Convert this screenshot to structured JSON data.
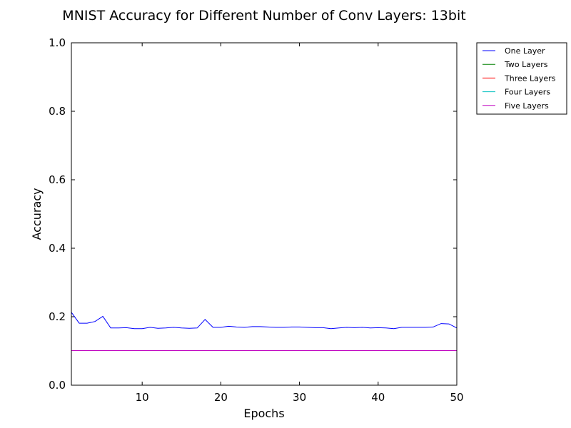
{
  "chart_data": {
    "type": "line",
    "title": "MNIST Accuracy for Different Number of Conv Layers: 13bit",
    "xlabel": "Epochs",
    "ylabel": "Accuracy",
    "xlim": [
      1,
      50
    ],
    "ylim": [
      0.0,
      1.0
    ],
    "xticks": [
      10,
      20,
      30,
      40,
      50
    ],
    "xtick_labels": [
      "10",
      "20",
      "30",
      "40",
      "50"
    ],
    "yticks": [
      0.0,
      0.2,
      0.4,
      0.6,
      0.8,
      1.0
    ],
    "ytick_labels": [
      "0.0",
      "0.2",
      "0.4",
      "0.6",
      "0.8",
      "1.0"
    ],
    "grid": false,
    "legend_position": "outside top-right",
    "x": [
      1,
      2,
      3,
      4,
      5,
      6,
      7,
      8,
      9,
      10,
      11,
      12,
      13,
      14,
      15,
      16,
      17,
      18,
      19,
      20,
      21,
      22,
      23,
      24,
      25,
      26,
      27,
      28,
      29,
      30,
      31,
      32,
      33,
      34,
      35,
      36,
      37,
      38,
      39,
      40,
      41,
      42,
      43,
      44,
      45,
      46,
      47,
      48,
      49,
      50
    ],
    "series": [
      {
        "name": "One Layer",
        "color": "#0000ff",
        "values": [
          0.213,
          0.181,
          0.181,
          0.186,
          0.201,
          0.167,
          0.167,
          0.168,
          0.165,
          0.165,
          0.169,
          0.166,
          0.167,
          0.169,
          0.167,
          0.166,
          0.167,
          0.192,
          0.169,
          0.169,
          0.172,
          0.17,
          0.169,
          0.171,
          0.171,
          0.17,
          0.169,
          0.169,
          0.17,
          0.17,
          0.169,
          0.168,
          0.168,
          0.165,
          0.167,
          0.169,
          0.168,
          0.169,
          0.167,
          0.168,
          0.167,
          0.165,
          0.169,
          0.169,
          0.169,
          0.169,
          0.17,
          0.18,
          0.179,
          0.167
        ]
      },
      {
        "name": "Two Layers",
        "color": "#008000",
        "values": [
          0.101,
          0.101,
          0.101,
          0.101,
          0.101,
          0.101,
          0.101,
          0.101,
          0.101,
          0.101,
          0.101,
          0.101,
          0.101,
          0.101,
          0.101,
          0.101,
          0.101,
          0.101,
          0.101,
          0.101,
          0.101,
          0.101,
          0.101,
          0.101,
          0.101,
          0.101,
          0.101,
          0.101,
          0.101,
          0.101,
          0.101,
          0.101,
          0.101,
          0.101,
          0.101,
          0.101,
          0.101,
          0.101,
          0.101,
          0.101,
          0.101,
          0.101,
          0.101,
          0.101,
          0.101,
          0.101,
          0.101,
          0.101,
          0.101,
          0.101
        ]
      },
      {
        "name": "Three Layers",
        "color": "#ff0000",
        "values": [
          0.101,
          0.101,
          0.101,
          0.101,
          0.101,
          0.101,
          0.101,
          0.101,
          0.101,
          0.101,
          0.101,
          0.101,
          0.101,
          0.101,
          0.101,
          0.101,
          0.101,
          0.101,
          0.101,
          0.101,
          0.101,
          0.101,
          0.101,
          0.101,
          0.101,
          0.101,
          0.101,
          0.101,
          0.101,
          0.101,
          0.101,
          0.101,
          0.101,
          0.101,
          0.101,
          0.101,
          0.101,
          0.101,
          0.101,
          0.101,
          0.101,
          0.101,
          0.101,
          0.101,
          0.101,
          0.101,
          0.101,
          0.101,
          0.101,
          0.101
        ]
      },
      {
        "name": "Four Layers",
        "color": "#00bfbf",
        "values": [
          0.101,
          0.101,
          0.101,
          0.101,
          0.101,
          0.101,
          0.101,
          0.101,
          0.101,
          0.101,
          0.101,
          0.101,
          0.101,
          0.101,
          0.101,
          0.101,
          0.101,
          0.101,
          0.101,
          0.101,
          0.101,
          0.101,
          0.101,
          0.101,
          0.101,
          0.101,
          0.101,
          0.101,
          0.101,
          0.101,
          0.101,
          0.101,
          0.101,
          0.101,
          0.101,
          0.101,
          0.101,
          0.101,
          0.101,
          0.101,
          0.101,
          0.101,
          0.101,
          0.101,
          0.101,
          0.101,
          0.101,
          0.101,
          0.101,
          0.101
        ]
      },
      {
        "name": "Five Layers",
        "color": "#bf00bf",
        "values": [
          0.101,
          0.101,
          0.101,
          0.101,
          0.101,
          0.101,
          0.101,
          0.101,
          0.101,
          0.101,
          0.101,
          0.101,
          0.101,
          0.101,
          0.101,
          0.101,
          0.101,
          0.101,
          0.101,
          0.101,
          0.101,
          0.101,
          0.101,
          0.101,
          0.101,
          0.101,
          0.101,
          0.101,
          0.101,
          0.101,
          0.101,
          0.101,
          0.101,
          0.101,
          0.101,
          0.101,
          0.101,
          0.101,
          0.101,
          0.101,
          0.101,
          0.101,
          0.101,
          0.101,
          0.101,
          0.101,
          0.101,
          0.101,
          0.101,
          0.101
        ]
      }
    ]
  }
}
